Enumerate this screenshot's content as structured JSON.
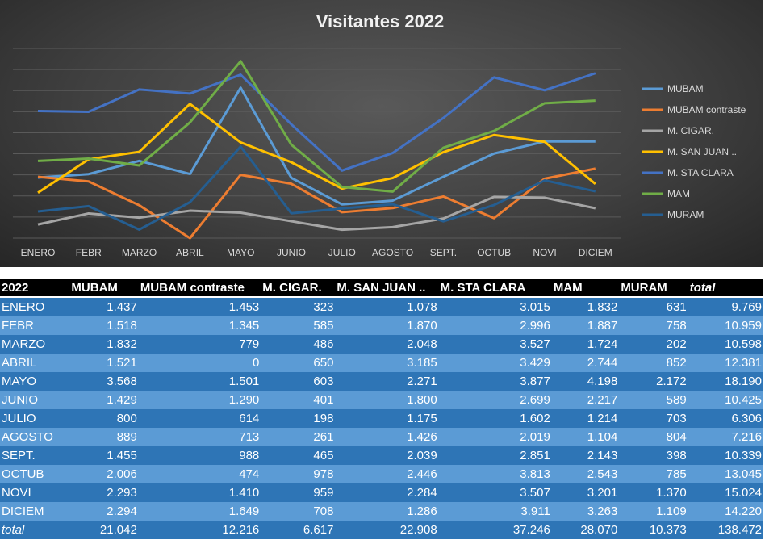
{
  "chart_data": {
    "type": "line",
    "title": "Visitantes 2022",
    "categories": [
      "ENERO",
      "FEBR",
      "MARZO",
      "ABRIL",
      "MAYO",
      "JUNIO",
      "JULIO",
      "AGOSTO",
      "SEPT.",
      "OCTUB",
      "NOVI",
      "DICIEM"
    ],
    "ylim": [
      0,
      4500
    ],
    "grid": true,
    "legend_position": "right",
    "series": [
      {
        "name": "MUBAM",
        "color": "#5B9BD5",
        "values": [
          1437,
          1518,
          1832,
          1521,
          3568,
          1429,
          800,
          889,
          1455,
          2006,
          2293,
          2294
        ]
      },
      {
        "name": "MUBAM contraste",
        "color": "#ED7D31",
        "values": [
          1453,
          1345,
          779,
          0,
          1501,
          1290,
          614,
          713,
          988,
          474,
          1410,
          1649
        ]
      },
      {
        "name": "M. CIGAR.",
        "color": "#A5A5A5",
        "values": [
          323,
          585,
          486,
          650,
          603,
          401,
          198,
          261,
          465,
          978,
          959,
          708
        ]
      },
      {
        "name": "M. SAN JUAN ..",
        "color": "#FFC000",
        "values": [
          1078,
          1870,
          2048,
          3185,
          2271,
          1800,
          1175,
          1426,
          2039,
          2446,
          2284,
          1286
        ]
      },
      {
        "name": "M. STA CLARA",
        "color": "#4472C4",
        "values": [
          3015,
          2996,
          3527,
          3429,
          3877,
          2699,
          1602,
          2019,
          2851,
          3813,
          3507,
          3911
        ]
      },
      {
        "name": "MAM",
        "color": "#70AD47",
        "values": [
          1832,
          1887,
          1724,
          2744,
          4198,
          2217,
          1214,
          1104,
          2143,
          2543,
          3201,
          3263
        ]
      },
      {
        "name": "MURAM",
        "color": "#255E91",
        "values": [
          631,
          758,
          202,
          852,
          2172,
          589,
          703,
          804,
          398,
          785,
          1370,
          1109
        ]
      }
    ]
  },
  "table": {
    "headers": [
      "2022",
      "MUBAM",
      "MUBAM contraste",
      "M. CIGAR.",
      "M. SAN JUAN ..",
      "M. STA CLARA",
      "MAM",
      "MURAM",
      "total"
    ],
    "rows": [
      [
        "ENERO",
        "1.437",
        "1.453",
        "323",
        "1.078",
        "3.015",
        "1.832",
        "631",
        "9.769"
      ],
      [
        "FEBR",
        "1.518",
        "1.345",
        "585",
        "1.870",
        "2.996",
        "1.887",
        "758",
        "10.959"
      ],
      [
        "MARZO",
        "1.832",
        "779",
        "486",
        "2.048",
        "3.527",
        "1.724",
        "202",
        "10.598"
      ],
      [
        "ABRIL",
        "1.521",
        "0",
        "650",
        "3.185",
        "3.429",
        "2.744",
        "852",
        "12.381"
      ],
      [
        "MAYO",
        "3.568",
        "1.501",
        "603",
        "2.271",
        "3.877",
        "4.198",
        "2.172",
        "18.190"
      ],
      [
        "JUNIO",
        "1.429",
        "1.290",
        "401",
        "1.800",
        "2.699",
        "2.217",
        "589",
        "10.425"
      ],
      [
        "JULIO",
        "800",
        "614",
        "198",
        "1.175",
        "1.602",
        "1.214",
        "703",
        "6.306"
      ],
      [
        "AGOSTO",
        "889",
        "713",
        "261",
        "1.426",
        "2.019",
        "1.104",
        "804",
        "7.216"
      ],
      [
        "SEPT.",
        "1.455",
        "988",
        "465",
        "2.039",
        "2.851",
        "2.143",
        "398",
        "10.339"
      ],
      [
        "OCTUB",
        "2.006",
        "474",
        "978",
        "2.446",
        "3.813",
        "2.543",
        "785",
        "13.045"
      ],
      [
        "NOVI",
        "2.293",
        "1.410",
        "959",
        "2.284",
        "3.507",
        "3.201",
        "1.370",
        "15.024"
      ],
      [
        "DICIEM",
        "2.294",
        "1.649",
        "708",
        "1.286",
        "3.911",
        "3.263",
        "1.109",
        "14.220"
      ],
      [
        "total",
        "21.042",
        "12.216",
        "6.617",
        "22.908",
        "37.246",
        "28.070",
        "10.373",
        "138.472"
      ]
    ]
  }
}
